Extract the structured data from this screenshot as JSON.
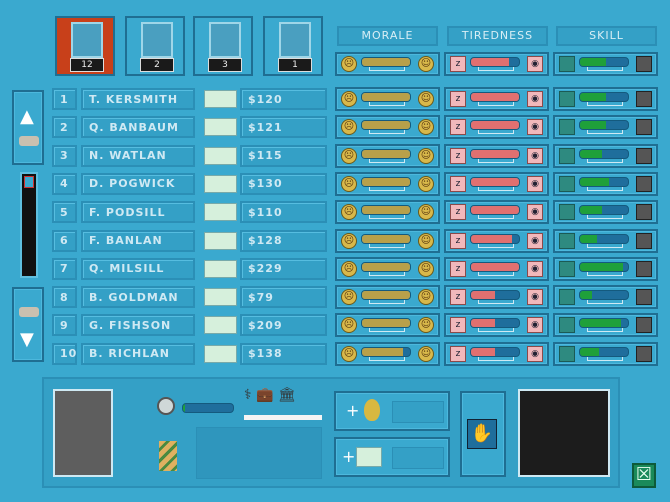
{
  "staff_types": [
    {
      "label": "12",
      "icon": "doctor-portrait-icon",
      "selected": true
    },
    {
      "label": "2",
      "icon": "nurse-portrait-icon",
      "selected": false
    },
    {
      "label": "3",
      "icon": "handyman-portrait-icon",
      "selected": false
    },
    {
      "label": "1",
      "icon": "receptionist-portrait-icon",
      "selected": false
    }
  ],
  "headers": {
    "morale": "MORALE",
    "tiredness": "TIREDNESS",
    "skill": "SKILL"
  },
  "summary": {
    "morale": 1.0,
    "tiredness": 0.8,
    "skill": 0.55
  },
  "colors": {
    "background": "#3aa9cf",
    "morale": "#b8a04a",
    "tiredness": "#e07070",
    "skill": "#1fa03a",
    "selected_tab": "#c8401a"
  },
  "staff": [
    {
      "num": "1",
      "name": "T. KERSMITH",
      "salary": "$120",
      "morale": 1.0,
      "tiredness": 1.0,
      "skill": 0.55
    },
    {
      "num": "2",
      "name": "Q. BANBAUM",
      "salary": "$121",
      "morale": 1.0,
      "tiredness": 1.0,
      "skill": 0.55
    },
    {
      "num": "3",
      "name": "N. WATLAN",
      "salary": "$115",
      "morale": 1.0,
      "tiredness": 1.0,
      "skill": 0.45
    },
    {
      "num": "4",
      "name": "D. POGWICK",
      "salary": "$130",
      "morale": 1.0,
      "tiredness": 1.0,
      "skill": 0.6
    },
    {
      "num": "5",
      "name": "F. PODSILL",
      "salary": "$110",
      "morale": 1.0,
      "tiredness": 1.0,
      "skill": 0.45
    },
    {
      "num": "6",
      "name": "F. BANLAN",
      "salary": "$128",
      "morale": 1.0,
      "tiredness": 0.85,
      "skill": 0.35
    },
    {
      "num": "7",
      "name": "Q. MILSILL",
      "salary": "$229",
      "morale": 1.0,
      "tiredness": 1.0,
      "skill": 0.9
    },
    {
      "num": "8",
      "name": "B. GOLDMAN",
      "salary": "$79",
      "morale": 1.0,
      "tiredness": 0.5,
      "skill": 0.25
    },
    {
      "num": "9",
      "name": "G. FISHSON",
      "salary": "$209",
      "morale": 1.0,
      "tiredness": 0.5,
      "skill": 0.85
    },
    {
      "num": "10",
      "name": "B. RICHLAN",
      "salary": "$138",
      "morale": 0.85,
      "tiredness": 0.5,
      "skill": 0.4
    }
  ],
  "bottom": {
    "plus": "+",
    "sack_icon": "hand-door-icon",
    "bonus_icon": "money-bag-icon",
    "raise_icon": "cheque-icon"
  }
}
